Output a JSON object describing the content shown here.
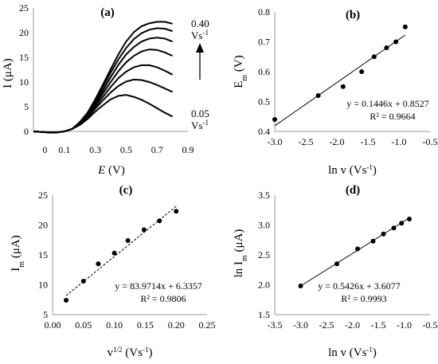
{
  "chart_data": [
    {
      "panel": "(a)",
      "type": "line",
      "title": "(a)",
      "xlabel": "E (V)",
      "ylabel": "I (μA)",
      "xlim": [
        -0.1,
        0.9
      ],
      "ylim": [
        0,
        25
      ],
      "xticks": [
        "0.1",
        "0.3",
        "0.5",
        "0.7",
        "0.9"
      ],
      "yticks": [
        "0",
        "5",
        "10",
        "15",
        "20",
        "25"
      ],
      "x_origin_label": "0",
      "grid": false,
      "annotations": {
        "top_value": "0.40",
        "top_unit": "Vs",
        "bottom_value": "0.05",
        "bottom_unit": "Vs",
        "unit_exp": "-1"
      },
      "series": [
        {
          "x": [
            -0.1,
            -0.05,
            0,
            0.05,
            0.1,
            0.15,
            0.2,
            0.25,
            0.3,
            0.35,
            0.4,
            0.45,
            0.5,
            0.55,
            0.6,
            0.65,
            0.7,
            0.75,
            0.8
          ],
          "values": [
            0,
            -0.1,
            -0.2,
            -0.2,
            0,
            0.5,
            1.3,
            2.5,
            4,
            5.3,
            6.5,
            7.2,
            7.4,
            7,
            6.4,
            5.6,
            4.7,
            3.8,
            3
          ]
        },
        {
          "x": [
            -0.1,
            -0.05,
            0,
            0.05,
            0.1,
            0.15,
            0.2,
            0.25,
            0.3,
            0.35,
            0.4,
            0.45,
            0.5,
            0.55,
            0.6,
            0.65,
            0.7,
            0.75,
            0.8
          ],
          "values": [
            0,
            -0.1,
            -0.2,
            -0.2,
            0,
            0.5,
            1.4,
            2.8,
            4.6,
            6.3,
            7.9,
            9.2,
            10.1,
            10.5,
            10.4,
            10,
            9.4,
            8.7,
            8
          ]
        },
        {
          "x": [
            -0.1,
            -0.05,
            0,
            0.05,
            0.1,
            0.15,
            0.2,
            0.25,
            0.3,
            0.35,
            0.4,
            0.45,
            0.5,
            0.55,
            0.6,
            0.65,
            0.7,
            0.75,
            0.8
          ],
          "values": [
            0,
            -0.1,
            -0.2,
            -0.2,
            0,
            0.5,
            1.5,
            3,
            5,
            7,
            9,
            10.8,
            12.1,
            13,
            13.4,
            13.4,
            13,
            12.3,
            11.5
          ]
        },
        {
          "x": [
            -0.1,
            -0.05,
            0,
            0.05,
            0.1,
            0.15,
            0.2,
            0.25,
            0.3,
            0.35,
            0.4,
            0.45,
            0.5,
            0.55,
            0.6,
            0.65,
            0.7,
            0.75,
            0.8
          ],
          "values": [
            0,
            -0.1,
            -0.2,
            -0.2,
            0,
            0.5,
            1.6,
            3.2,
            5.4,
            7.7,
            10,
            12.2,
            14,
            15.3,
            16.2,
            16.6,
            16.5,
            16,
            15.3
          ]
        },
        {
          "x": [
            -0.1,
            -0.05,
            0,
            0.05,
            0.1,
            0.15,
            0.2,
            0.25,
            0.3,
            0.35,
            0.4,
            0.45,
            0.5,
            0.55,
            0.6,
            0.65,
            0.7,
            0.75,
            0.8
          ],
          "values": [
            0,
            -0.1,
            -0.2,
            -0.2,
            0,
            0.5,
            1.7,
            3.4,
            5.8,
            8.3,
            11,
            13.5,
            15.6,
            17.1,
            18.2,
            18.8,
            19,
            18.8,
            18.2
          ]
        },
        {
          "x": [
            -0.1,
            -0.05,
            0,
            0.05,
            0.1,
            0.15,
            0.2,
            0.25,
            0.3,
            0.35,
            0.4,
            0.45,
            0.5,
            0.55,
            0.6,
            0.65,
            0.7,
            0.75,
            0.8
          ],
          "values": [
            0,
            -0.1,
            -0.2,
            -0.2,
            0,
            0.5,
            1.8,
            3.6,
            6.2,
            9,
            11.9,
            14.6,
            16.9,
            18.7,
            19.9,
            20.6,
            20.9,
            20.8,
            20.3
          ]
        },
        {
          "x": [
            -0.1,
            -0.05,
            0,
            0.05,
            0.1,
            0.15,
            0.2,
            0.25,
            0.3,
            0.35,
            0.4,
            0.45,
            0.5,
            0.55,
            0.6,
            0.65,
            0.7,
            0.75,
            0.8
          ],
          "values": [
            0,
            -0.1,
            -0.2,
            -0.2,
            0,
            0.5,
            1.9,
            3.8,
            6.5,
            9.5,
            12.6,
            15.6,
            18.2,
            20.1,
            21.3,
            21.9,
            22.2,
            22.2,
            21.8
          ]
        }
      ]
    },
    {
      "panel": "(b)",
      "type": "scatter",
      "title": "(b)",
      "xlabel": "ln v (Vs-1)",
      "ylabel": "Em (V)",
      "xlim": [
        -3.0,
        -0.5
      ],
      "ylim": [
        0.4,
        0.8
      ],
      "xticks": [
        "-3.0",
        "-2.5",
        "-2.0",
        "-1.5",
        "-1.0",
        "-0.5"
      ],
      "yticks": [
        "0.4",
        "0.5",
        "0.6",
        "0.7",
        "0.8"
      ],
      "points": {
        "x": [
          -3.0,
          -2.3,
          -1.9,
          -1.6,
          -1.4,
          -1.2,
          -1.05,
          -0.9
        ],
        "y": [
          0.44,
          0.52,
          0.55,
          0.6,
          0.65,
          0.68,
          0.7,
          0.75
        ]
      },
      "trendline": {
        "type": "linear",
        "slope": 0.1446,
        "intercept": 0.8527,
        "style": "solid",
        "x_range": [
          -3.0,
          -0.9
        ]
      },
      "equation": "y = 0.1446x + 0.8527",
      "r2": "R² = 0.9664"
    },
    {
      "panel": "(c)",
      "type": "scatter",
      "title": "(c)",
      "xlabel": "v1/2 (Vs-1)",
      "ylabel": "Im (μA)",
      "xlim": [
        0.0,
        0.25
      ],
      "ylim": [
        5,
        25
      ],
      "xticks": [
        "0.00",
        "0.05",
        "0.10",
        "0.15",
        "0.20",
        "0.25"
      ],
      "yticks": [
        "5",
        "10",
        "15",
        "20",
        "25"
      ],
      "points": {
        "x": [
          0.022,
          0.05,
          0.074,
          0.1,
          0.122,
          0.148,
          0.173,
          0.2
        ],
        "y": [
          7.4,
          10.6,
          13.5,
          15.3,
          17.4,
          19.2,
          20.7,
          22.3
        ]
      },
      "trendline": {
        "type": "linear",
        "slope": 83.9714,
        "intercept": 6.3357,
        "style": "dashed",
        "x_range": [
          0.022,
          0.2
        ]
      },
      "equation": "y = 83.9714x + 6.3357",
      "r2": "R² = 0.9806"
    },
    {
      "panel": "(d)",
      "type": "scatter",
      "title": "(d)",
      "xlabel": "ln v (Vs-1)",
      "ylabel": "ln Im (μA)",
      "xlim": [
        -3.5,
        -0.5
      ],
      "ylim": [
        1.5,
        3.5
      ],
      "xticks": [
        "-3.5",
        "-3.0",
        "-2.5",
        "-2.0",
        "-1.5",
        "-1.0",
        "-0.5"
      ],
      "yticks": [
        "1.5",
        "2.0",
        "2.5",
        "3.0",
        "3.5"
      ],
      "points": {
        "x": [
          -3.0,
          -2.3,
          -1.9,
          -1.6,
          -1.4,
          -1.2,
          -1.05,
          -0.9
        ],
        "y": [
          1.98,
          2.35,
          2.6,
          2.73,
          2.85,
          2.95,
          3.03,
          3.1
        ]
      },
      "trendline": {
        "type": "linear",
        "slope": 0.5426,
        "intercept": 3.6077,
        "style": "solid",
        "x_range": [
          -3.0,
          -0.9
        ]
      },
      "equation": "y = 0.5426x + 3.6077",
      "r2": "R² = 0.9993"
    }
  ]
}
